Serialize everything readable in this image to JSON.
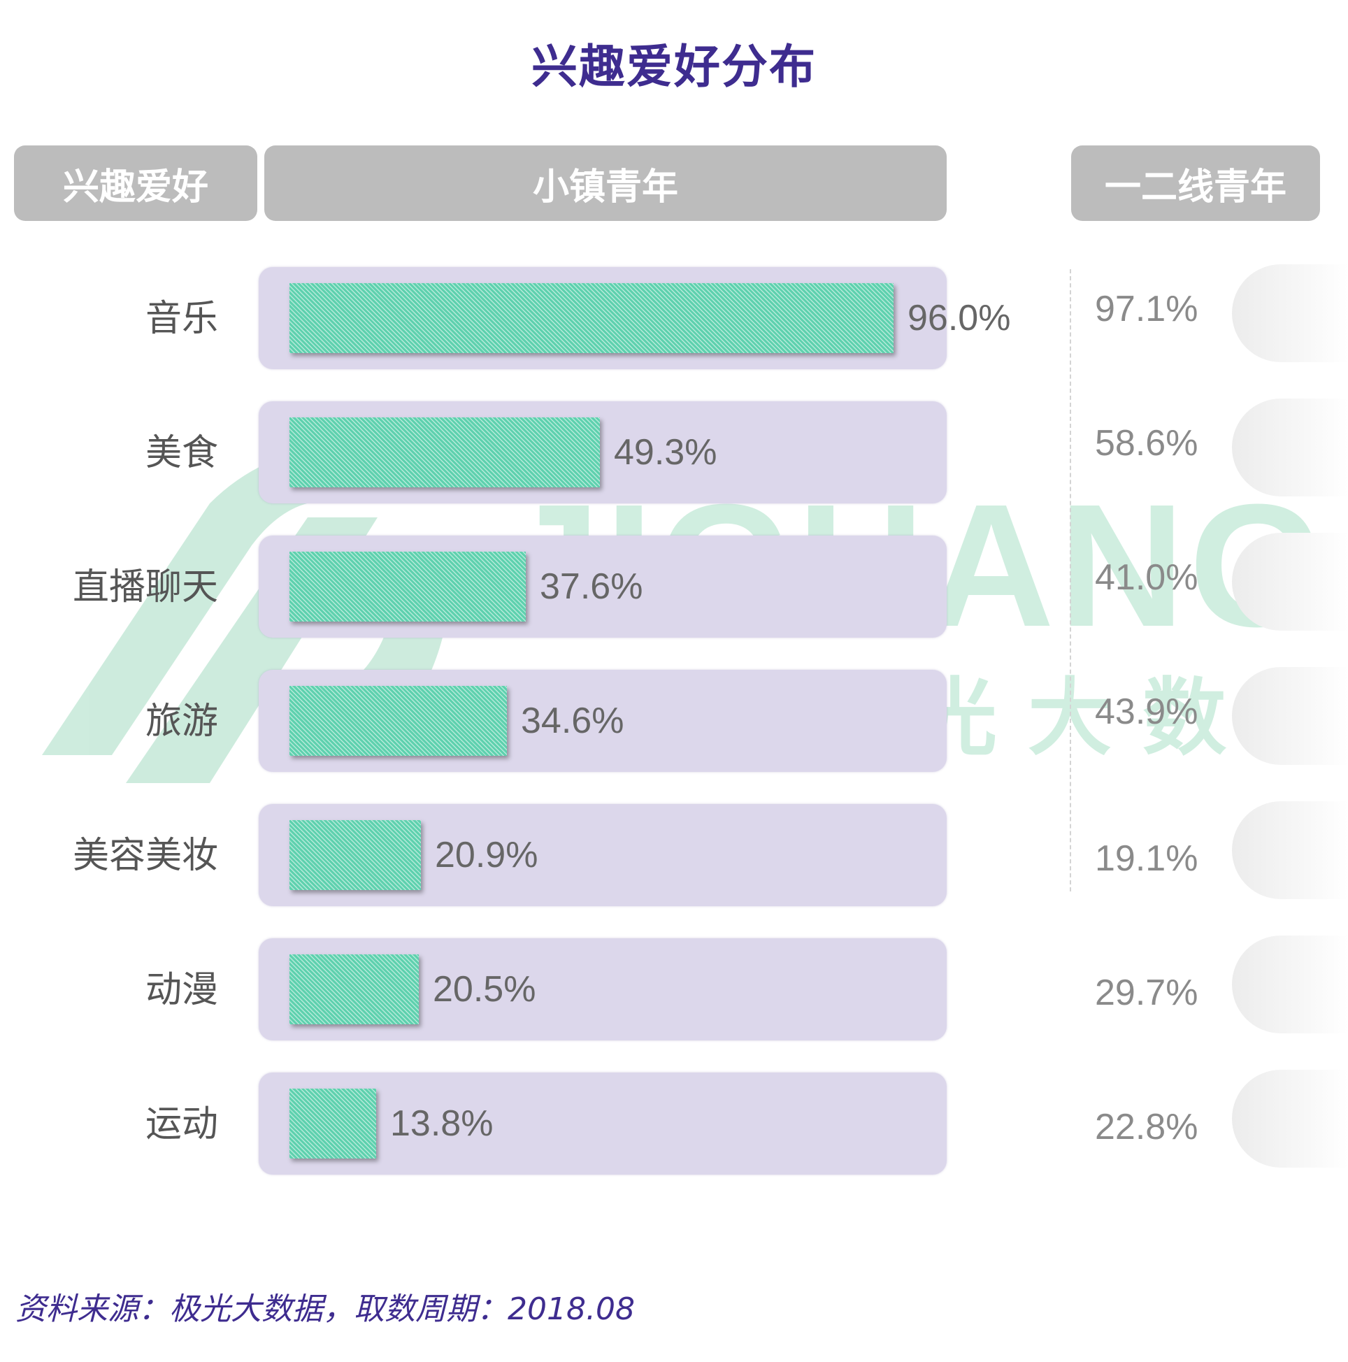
{
  "title": "兴趣爱好分布",
  "headers": {
    "category": "兴趣爱好",
    "town": "小镇青年",
    "city": "一二线青年"
  },
  "source": "资料来源：极光大数据，取数周期：2018.08",
  "watermark": {
    "text_en": "JIGUANG",
    "text_cn": "极光大数据"
  },
  "colors": {
    "title": "#3e2c8f",
    "bar": "#5ed1ae",
    "track": "#dcd7eb",
    "header": "#bcbcbc",
    "watermark": "#bde8d4"
  },
  "chart_data": {
    "type": "bar",
    "orientation": "horizontal",
    "title": "兴趣爱好分布",
    "categories": [
      "音乐",
      "美食",
      "直播聊天",
      "旅游",
      "美容美妆",
      "动漫",
      "运动"
    ],
    "series": [
      {
        "name": "小镇青年",
        "values": [
          96.0,
          49.3,
          37.6,
          34.6,
          20.9,
          20.5,
          13.8
        ],
        "labels": [
          "96.0%",
          "49.3%",
          "37.6%",
          "34.6%",
          "20.9%",
          "20.5%",
          "13.8%"
        ]
      },
      {
        "name": "一二线青年",
        "values": [
          97.1,
          58.6,
          41.0,
          43.9,
          19.1,
          29.7,
          22.8
        ],
        "labels": [
          "97.1%",
          "58.6%",
          "41.0%",
          "43.9%",
          "19.1%",
          "29.7%",
          "22.8%"
        ]
      }
    ],
    "xlim": [
      0,
      100
    ],
    "unit": "%"
  }
}
